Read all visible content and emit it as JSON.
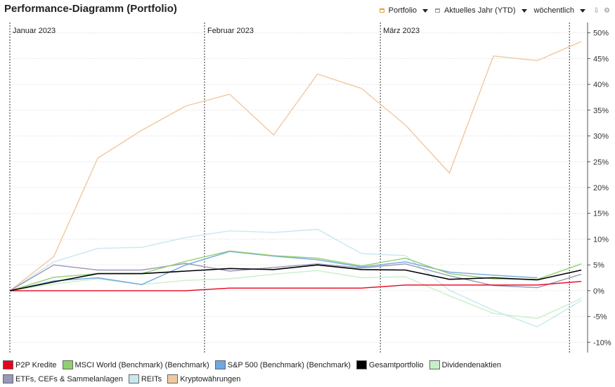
{
  "header": {
    "title": "Performance-Diagramm (Portfolio)",
    "portfolio_label": "Portfolio",
    "period_label": "Aktuelles Jahr (YTD)",
    "interval_label": "wöchentlich",
    "export_icon": "download-icon",
    "settings_icon": "gear-icon"
  },
  "chart_data": {
    "type": "line",
    "x": [
      "2023-01-01",
      "2023-01-08",
      "2023-01-15",
      "2023-01-22",
      "2023-01-29",
      "2023-02-05",
      "2023-02-12",
      "2023-02-19",
      "2023-02-26",
      "2023-03-05",
      "2023-03-12",
      "2023-03-19",
      "2023-03-26",
      "2023-04-02"
    ],
    "month_labels": [
      {
        "date": "2023-01-01",
        "label": "Januar 2023"
      },
      {
        "date": "2023-02-01",
        "label": "Februar 2023"
      },
      {
        "date": "2023-03-01",
        "label": "März 2023"
      }
    ],
    "today_marker": "2023-03-31",
    "ylim": [
      -12,
      52
    ],
    "yticks": [
      -10,
      -5,
      0,
      5,
      10,
      15,
      20,
      25,
      30,
      35,
      40,
      45,
      50
    ],
    "ytick_suffix": "%",
    "grid": true,
    "legend_position": "bottom",
    "series": [
      {
        "name": "P2P Kredite",
        "color": "#e8001c",
        "values": [
          0,
          0,
          0,
          0,
          0,
          0.5,
          0.5,
          0.5,
          0.5,
          1.1,
          1.1,
          1.1,
          1.1,
          1.8
        ]
      },
      {
        "name": "MSCI World (Benchmark) (Benchmark)",
        "color": "#90d070",
        "values": [
          0,
          2.6,
          3.3,
          3.3,
          5.7,
          7.7,
          6.8,
          6.3,
          4.8,
          6.3,
          3.3,
          2.3,
          2.2,
          5.2
        ]
      },
      {
        "name": "S&P 500 (Benchmark) (Benchmark)",
        "color": "#70a8e0",
        "values": [
          0,
          1.9,
          2.5,
          1.2,
          5.0,
          7.6,
          6.7,
          6.0,
          4.6,
          5.6,
          3.6,
          3.0,
          2.5,
          null
        ]
      },
      {
        "name": "Gesamtportfolio",
        "color": "#000000",
        "values": [
          0,
          1.7,
          3.3,
          3.3,
          3.8,
          4.3,
          4.1,
          5.0,
          4.1,
          4.0,
          2.2,
          2.5,
          2.1,
          4.0
        ]
      },
      {
        "name": "Dividendenaktien",
        "color": "#c8f0c8",
        "values": [
          0,
          1.3,
          2.3,
          1.2,
          2.0,
          2.3,
          3.2,
          3.9,
          2.5,
          2.7,
          -1.0,
          -4.4,
          -5.4,
          -1.5
        ]
      },
      {
        "name": "ETFs, CEFs & Sammelanlagen",
        "color": "#9898b8",
        "values": [
          0,
          5.0,
          4.0,
          4.0,
          5.3,
          3.8,
          4.5,
          5.2,
          4.4,
          5.2,
          2.9,
          1.0,
          0.6,
          3.2
        ]
      },
      {
        "name": "REITs",
        "color": "#c8e8f0",
        "values": [
          0,
          5.6,
          8.2,
          8.4,
          10.3,
          11.6,
          11.3,
          11.9,
          7.2,
          6.8,
          0.1,
          -3.8,
          -7.0,
          -1.9
        ]
      },
      {
        "name": "Kryptowährungen",
        "color": "#f0c8a0",
        "values": [
          0,
          6.6,
          25.7,
          31.1,
          35.8,
          38.1,
          30.2,
          42.0,
          39.2,
          32.1,
          22.8,
          45.5,
          44.6,
          48.3
        ]
      }
    ]
  }
}
